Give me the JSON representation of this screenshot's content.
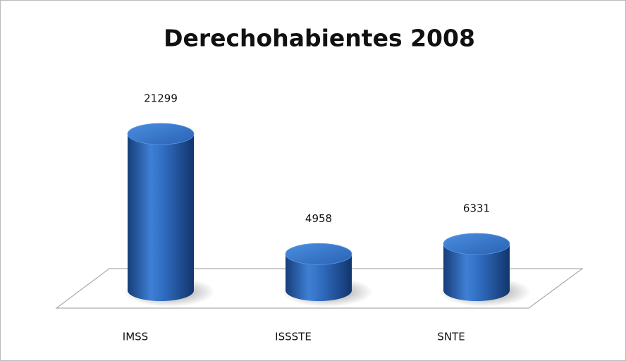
{
  "chart_data": {
    "type": "bar3d",
    "title": "Derechohabientes 2008",
    "categories": [
      "IMSS",
      "ISSSTE",
      "SNTE"
    ],
    "values": [
      21299,
      4958,
      6331
    ],
    "color": "#2a62b4"
  }
}
